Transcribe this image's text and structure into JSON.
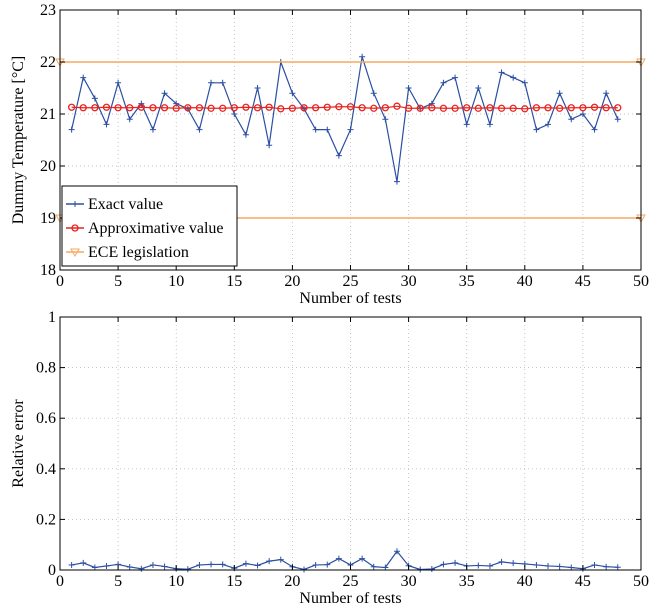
{
  "chart_data": [
    {
      "type": "line",
      "xlabel": "Number of tests",
      "ylabel": "Dummy Temperature [°C]",
      "xlim": [
        0,
        50
      ],
      "ylim": [
        18,
        23
      ],
      "xticks": [
        0,
        5,
        10,
        15,
        20,
        25,
        30,
        35,
        40,
        45,
        50
      ],
      "yticks": [
        18,
        19,
        20,
        21,
        22,
        23
      ],
      "grid": true,
      "legend_position": "bottom-left",
      "series": [
        {
          "name": "Exact value",
          "color": "#2b4fa3",
          "marker": "plus",
          "x": [
            1,
            2,
            3,
            4,
            5,
            6,
            7,
            8,
            9,
            10,
            11,
            12,
            13,
            14,
            15,
            16,
            17,
            18,
            19,
            20,
            21,
            22,
            23,
            24,
            25,
            26,
            27,
            28,
            29,
            30,
            31,
            32,
            33,
            34,
            35,
            36,
            37,
            38,
            39,
            40,
            41,
            42,
            43,
            44,
            45,
            46,
            47,
            48
          ],
          "values": [
            20.7,
            21.7,
            21.3,
            20.8,
            21.6,
            20.9,
            21.2,
            20.7,
            21.4,
            21.2,
            21.1,
            20.7,
            21.6,
            21.6,
            21.0,
            20.6,
            21.5,
            20.4,
            22.0,
            21.4,
            21.1,
            20.7,
            20.7,
            20.2,
            20.7,
            22.1,
            21.4,
            20.9,
            19.7,
            21.5,
            21.1,
            21.2,
            21.6,
            21.7,
            20.8,
            21.5,
            20.8,
            21.8,
            21.7,
            21.6,
            20.7,
            20.8,
            21.4,
            20.9,
            21.0,
            20.7,
            21.4,
            20.9
          ]
        },
        {
          "name": "Approximative value",
          "color": "#e8231f",
          "marker": "circle",
          "x": [
            1,
            2,
            3,
            4,
            5,
            6,
            7,
            8,
            9,
            10,
            11,
            12,
            13,
            14,
            15,
            16,
            17,
            18,
            19,
            20,
            21,
            22,
            23,
            24,
            25,
            26,
            27,
            28,
            29,
            30,
            31,
            32,
            33,
            34,
            35,
            36,
            37,
            38,
            39,
            40,
            41,
            42,
            43,
            44,
            45,
            46,
            47,
            48
          ],
          "values": [
            21.13,
            21.12,
            21.12,
            21.13,
            21.12,
            21.12,
            21.13,
            21.12,
            21.12,
            21.11,
            21.12,
            21.12,
            21.11,
            21.11,
            21.12,
            21.13,
            21.12,
            21.13,
            21.1,
            21.11,
            21.12,
            21.12,
            21.13,
            21.14,
            21.14,
            21.12,
            21.11,
            21.12,
            21.15,
            21.11,
            21.11,
            21.12,
            21.11,
            21.11,
            21.12,
            21.11,
            21.12,
            21.11,
            21.11,
            21.1,
            21.12,
            21.12,
            21.11,
            21.12,
            21.12,
            21.13,
            21.12,
            21.12
          ]
        },
        {
          "name": "ECE legislation",
          "color": "#f5a860",
          "marker": "triangle-down",
          "lines": [
            {
              "x": [
                0,
                50
              ],
              "values": [
                22,
                22
              ]
            },
            {
              "x": [
                0,
                50
              ],
              "values": [
                19,
                19
              ]
            }
          ]
        }
      ]
    },
    {
      "type": "line",
      "xlabel": "Number of tests",
      "ylabel": "Relative error",
      "xlim": [
        0,
        50
      ],
      "ylim": [
        0,
        1
      ],
      "xticks": [
        0,
        5,
        10,
        15,
        20,
        25,
        30,
        35,
        40,
        45,
        50
      ],
      "yticks": [
        0,
        0.2,
        0.4,
        0.6,
        0.8,
        1
      ],
      "grid": true,
      "series": [
        {
          "color": "#2b4fa3",
          "marker": "plus",
          "x": [
            1,
            2,
            3,
            4,
            5,
            6,
            7,
            8,
            9,
            10,
            11,
            12,
            13,
            14,
            15,
            16,
            17,
            18,
            19,
            20,
            21,
            22,
            23,
            24,
            25,
            26,
            27,
            28,
            29,
            30,
            31,
            32,
            33,
            34,
            35,
            36,
            37,
            38,
            39,
            40,
            41,
            42,
            43,
            44,
            45,
            46,
            47,
            48
          ],
          "values": [
            0.02,
            0.028,
            0.01,
            0.016,
            0.022,
            0.012,
            0.005,
            0.02,
            0.014,
            0.005,
            0.003,
            0.02,
            0.022,
            0.022,
            0.007,
            0.025,
            0.018,
            0.035,
            0.041,
            0.013,
            0.002,
            0.02,
            0.021,
            0.045,
            0.02,
            0.045,
            0.013,
            0.01,
            0.074,
            0.017,
            0.002,
            0.004,
            0.022,
            0.028,
            0.016,
            0.018,
            0.016,
            0.032,
            0.027,
            0.024,
            0.02,
            0.016,
            0.014,
            0.01,
            0.005,
            0.02,
            0.013,
            0.011
          ]
        }
      ]
    }
  ]
}
